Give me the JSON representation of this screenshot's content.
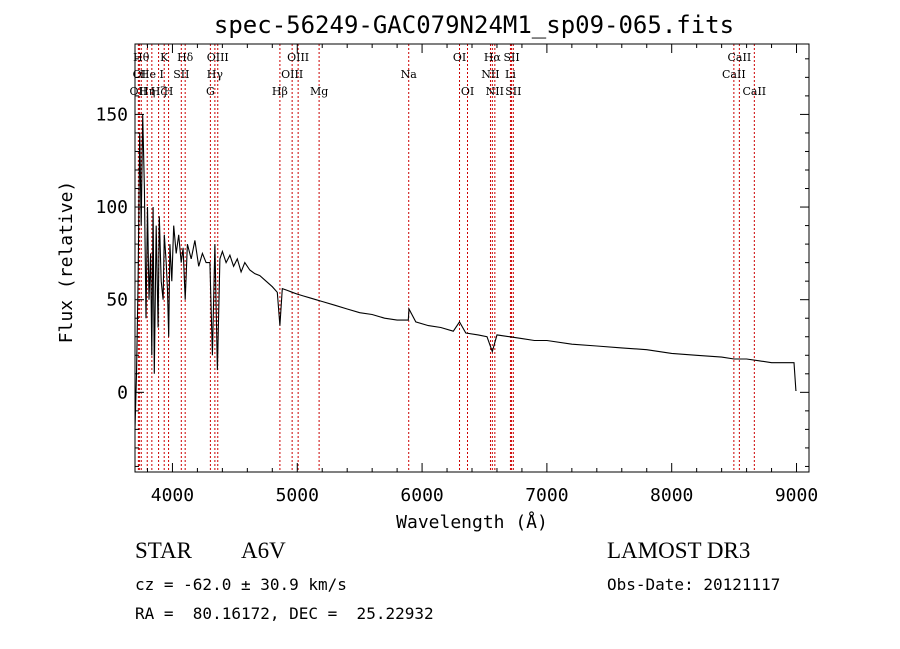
{
  "chart_data": {
    "type": "line",
    "title": "spec-56249-GAC079N24M1_sp09-065.fits",
    "xlabel": "Wavelength (Å)",
    "ylabel": "Flux (relative)",
    "xlim": [
      3700,
      9100
    ],
    "ylim": [
      -43,
      188
    ],
    "xticks": [
      4000,
      5000,
      6000,
      7000,
      8000,
      9000
    ],
    "yticks": [
      0,
      50,
      100,
      150
    ],
    "line_color": "#000000",
    "marker_color": "#cc0000",
    "spectrum": {
      "x": [
        3700,
        3712,
        3725,
        3738,
        3750,
        3762,
        3775,
        3788,
        3800,
        3812,
        3825,
        3835,
        3845,
        3855,
        3870,
        3885,
        3895,
        3910,
        3925,
        3935,
        3950,
        3960,
        3970,
        3980,
        3995,
        4010,
        4030,
        4050,
        4070,
        4085,
        4102,
        4120,
        4150,
        4180,
        4210,
        4240,
        4270,
        4300,
        4320,
        4340,
        4360,
        4380,
        4400,
        4430,
        4460,
        4490,
        4520,
        4550,
        4580,
        4620,
        4660,
        4700,
        4750,
        4800,
        4840,
        4861,
        4880,
        4920,
        4960,
        5000,
        5050,
        5100,
        5150,
        5200,
        5300,
        5400,
        5500,
        5600,
        5700,
        5800,
        5890,
        5895,
        5950,
        6050,
        6150,
        6250,
        6300,
        6350,
        6450,
        6520,
        6563,
        6600,
        6700,
        6800,
        6900,
        7000,
        7200,
        7400,
        7600,
        7800,
        8000,
        8200,
        8400,
        8500,
        8600,
        8700,
        8800,
        8900,
        8980,
        8995,
        9000
      ],
      "y": [
        -20,
        10,
        60,
        140,
        90,
        150,
        110,
        40,
        100,
        50,
        75,
        20,
        100,
        10,
        90,
        35,
        95,
        60,
        50,
        85,
        70,
        55,
        30,
        80,
        60,
        90,
        75,
        85,
        70,
        78,
        50,
        80,
        72,
        82,
        68,
        75,
        70,
        70,
        20,
        80,
        12,
        72,
        76,
        70,
        74,
        68,
        72,
        65,
        70,
        66,
        64,
        63,
        60,
        57,
        54,
        36,
        56,
        55,
        54,
        53,
        52,
        51,
        50,
        49,
        47,
        45,
        43,
        42,
        40,
        39,
        39,
        45,
        38,
        36,
        35,
        33,
        38,
        32,
        31,
        30,
        22,
        31,
        30,
        29,
        28,
        28,
        26,
        25,
        24,
        23,
        21,
        20,
        19,
        18,
        18,
        17,
        16,
        16,
        16,
        1,
        1
      ]
    },
    "lines": [
      {
        "x": 3727,
        "label": "OII",
        "row": 2
      },
      {
        "x": 3735,
        "label": "OI",
        "row": 1
      },
      {
        "x": 3750,
        "label": "Hθ",
        "row": 0
      },
      {
        "x": 3798,
        "label": "Hη",
        "row": 2
      },
      {
        "x": 3835,
        "label": "He I",
        "row": 1
      },
      {
        "x": 3889,
        "label": "Hζ",
        "row": 2
      },
      {
        "x": 3934,
        "label": "K",
        "row": 0
      },
      {
        "x": 3969,
        "label": "H",
        "row": 2
      },
      {
        "x": 4071,
        "label": "SII",
        "row": 1
      },
      {
        "x": 4102,
        "label": "Hδ",
        "row": 0
      },
      {
        "x": 4304,
        "label": "G",
        "row": 2
      },
      {
        "x": 4340,
        "label": "Hγ",
        "row": 1
      },
      {
        "x": 4363,
        "label": "OIII",
        "row": 0
      },
      {
        "x": 4861,
        "label": "Hβ",
        "row": 2
      },
      {
        "x": 4959,
        "label": "OIII",
        "row": 1
      },
      {
        "x": 5007,
        "label": "OIII",
        "row": 0
      },
      {
        "x": 5175,
        "label": "Mg",
        "row": 2
      },
      {
        "x": 5893,
        "label": "Na",
        "row": 1
      },
      {
        "x": 6300,
        "label": "OI",
        "row": 0
      },
      {
        "x": 6364,
        "label": "OI",
        "row": 2
      },
      {
        "x": 6548,
        "label": "NII",
        "row": 1
      },
      {
        "x": 6563,
        "label": "Hα",
        "row": 0
      },
      {
        "x": 6583,
        "label": "NII",
        "row": 2
      },
      {
        "x": 6708,
        "label": "Li",
        "row": 1
      },
      {
        "x": 6717,
        "label": "SII",
        "row": 0
      },
      {
        "x": 6731,
        "label": "SII",
        "row": 2
      },
      {
        "x": 8498,
        "label": "CaII",
        "row": 1
      },
      {
        "x": 8542,
        "label": "CaII",
        "row": 0
      },
      {
        "x": 8662,
        "label": "CaII",
        "row": 2
      }
    ]
  },
  "info": {
    "object_class": "STAR",
    "subclass": "A6V",
    "survey": "LAMOST DR3",
    "redshift": "cz = -62.0 ± 30.9 km/s",
    "obs_date": "Obs-Date: 20121117",
    "coords": "RA =  80.16172, DEC =  25.22932"
  }
}
